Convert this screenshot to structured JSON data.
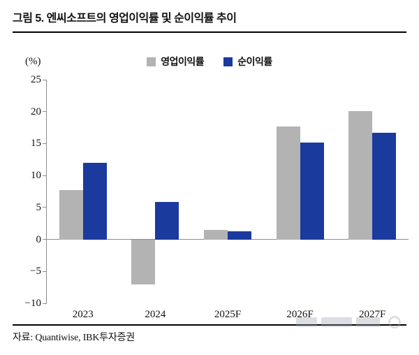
{
  "header": {
    "title": "그림 5. 엔씨소프트의 영업이익률 및 순이익률 추이"
  },
  "chart_data": {
    "type": "bar",
    "title": "엔씨소프트의 영업이익률 및 순이익률 추이",
    "unit_label": "(%)",
    "categories": [
      "2023",
      "2024",
      "2025F",
      "2026F",
      "2027F"
    ],
    "series": [
      {
        "name": "영업이익률",
        "color": "#b3b3b3",
        "values": [
          7.7,
          -7.0,
          1.5,
          17.7,
          20.1
        ]
      },
      {
        "name": "순이익률",
        "color": "#1a3a9e",
        "values": [
          12.0,
          5.9,
          1.3,
          15.2,
          16.7
        ]
      }
    ],
    "ylim": [
      -10,
      25
    ],
    "yticks": [
      25,
      20,
      15,
      10,
      5,
      0,
      -5,
      -10
    ],
    "legend_position": "top",
    "grid": false
  },
  "footer": {
    "source_label": "자료: Quantiwise, IBK투자증권"
  }
}
